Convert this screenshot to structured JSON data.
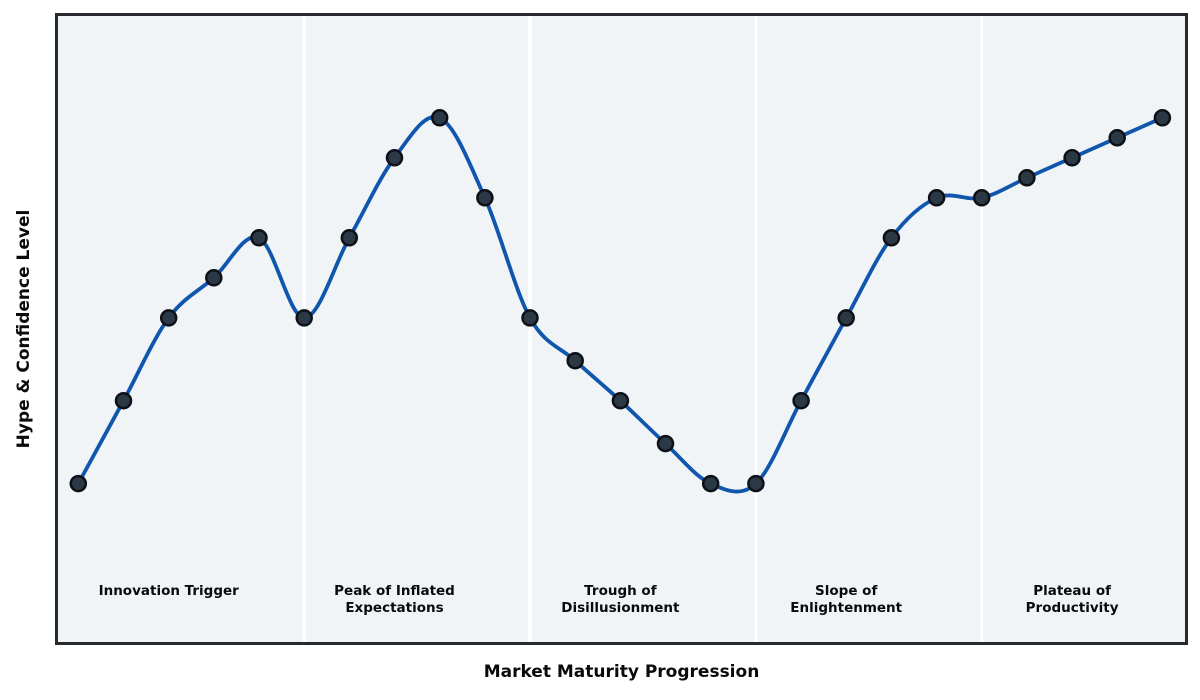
{
  "chart_data": {
    "type": "line",
    "title": "",
    "xlabel": "Market Maturity Progression",
    "ylabel": "Hype & Confidence Level",
    "x": [
      0,
      1,
      2,
      3,
      4,
      5,
      6,
      7,
      8,
      9,
      10,
      11,
      12,
      13,
      14,
      15,
      16,
      17,
      18,
      19,
      20,
      21,
      22,
      23,
      24
    ],
    "y": [
      25,
      39.5,
      54,
      61,
      68,
      54,
      68,
      82,
      89,
      75,
      54,
      46.5,
      39.5,
      32,
      25,
      25,
      39.5,
      54,
      68,
      75,
      75,
      78.5,
      82,
      85.5,
      89
    ],
    "xlim": [
      -0.45,
      24.5
    ],
    "ylim": [
      -2.7,
      106.8
    ],
    "grid": false,
    "legend": null,
    "smooth": true,
    "x_ticks_visible": false,
    "y_ticks_visible": false,
    "phases": [
      {
        "label_lines": [
          "Innovation Trigger"
        ],
        "end_x": 5,
        "label_x": 2
      },
      {
        "label_lines": [
          "Peak of Inflated",
          "Expectations"
        ],
        "end_x": 10,
        "label_x": 7
      },
      {
        "label_lines": [
          "Trough of",
          "Disillusionment"
        ],
        "end_x": 15,
        "label_x": 12
      },
      {
        "label_lines": [
          "Slope of",
          "Enlightenment"
        ],
        "end_x": 20,
        "label_x": 17
      },
      {
        "label_lines": [
          "Plateau of",
          "Productivity"
        ],
        "end_x": 24.5,
        "label_x": 22
      }
    ],
    "colors": {
      "line": "#1056ad",
      "marker_fill": "#2b3947",
      "marker_edge": "#0d1117",
      "band_background": "#f0f4f7",
      "separator": "#ffffff",
      "frame": "#26292e",
      "text": "#0a0a0a"
    },
    "line_width": 3.8,
    "marker_radius": 7.5,
    "marker_edge_width": 2.5
  }
}
